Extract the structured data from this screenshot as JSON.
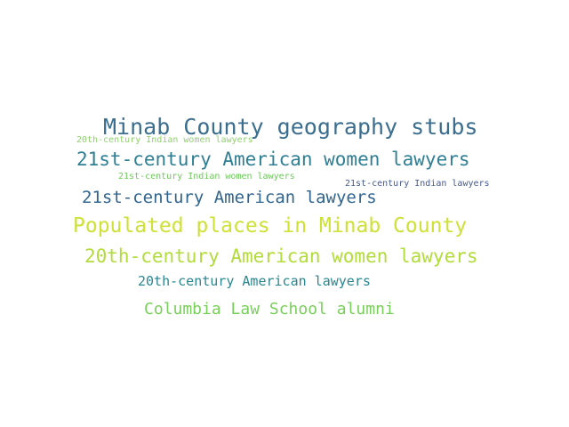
{
  "word_cloud": {
    "words": [
      {
        "text": "Minab County geography stubs",
        "color": "#3b6e8f"
      },
      {
        "text": "20th-century Indian women lawyers",
        "color": "#8fd16b"
      },
      {
        "text": "21st-century American women lawyers",
        "color": "#2e7f94"
      },
      {
        "text": "21st-century Indian women lawyers",
        "color": "#6cc95a"
      },
      {
        "text": "21st-century Indian lawyers",
        "color": "#44598d"
      },
      {
        "text": "21st-century American lawyers",
        "color": "#31648e"
      },
      {
        "text": "Populated places in Minab County",
        "color": "#cde136"
      },
      {
        "text": "20th-century American women lawyers",
        "color": "#b2dc3a"
      },
      {
        "text": "20th-century American lawyers",
        "color": "#2a8690"
      },
      {
        "text": "Columbia Law School alumni",
        "color": "#79cf5b"
      }
    ]
  }
}
